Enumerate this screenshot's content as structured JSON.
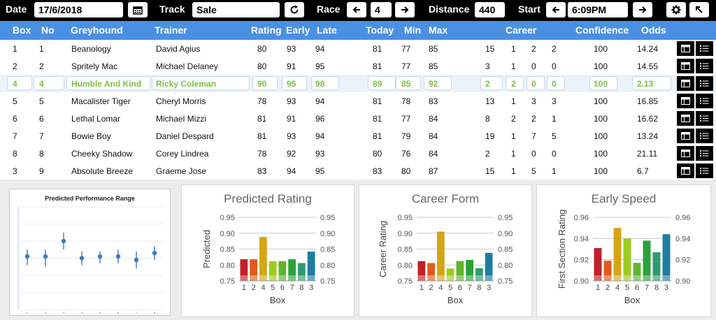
{
  "toolbar": {
    "date_label": "Date",
    "date_value": "17/6/2018",
    "track_label": "Track",
    "track_value": "Sale",
    "race_label": "Race",
    "race_value": "4",
    "distance_label": "Distance",
    "distance_value": "440",
    "start_label": "Start",
    "start_value": "6:09PM"
  },
  "table": {
    "headers": [
      "Box",
      "No",
      "Greyhound",
      "Trainer",
      "Rating",
      "Early",
      "Late",
      "Today",
      "Min",
      "Max",
      "Career",
      "Confidence",
      "Odds"
    ],
    "rows": [
      {
        "box": "1",
        "no": "1",
        "dog": "Beanology",
        "trainer": "David Agius",
        "rating": "80",
        "early": "93",
        "late": "94",
        "today": "81",
        "min": "77",
        "max": "85",
        "c1": "15",
        "c2": "1",
        "c3": "2",
        "c4": "2",
        "conf": "100",
        "odds": "14.24"
      },
      {
        "box": "2",
        "no": "2",
        "dog": "Spritely Mac",
        "trainer": "Michael Delaney",
        "rating": "80",
        "early": "91",
        "late": "95",
        "today": "81",
        "min": "77",
        "max": "85",
        "c1": "3",
        "c2": "1",
        "c3": "0",
        "c4": "0",
        "conf": "100",
        "odds": "14.55"
      },
      {
        "box": "4",
        "no": "4",
        "dog": "Humble And Kind",
        "trainer": "Ricky Coleman",
        "rating": "90",
        "early": "95",
        "late": "98",
        "today": "89",
        "min": "85",
        "max": "92",
        "c1": "2",
        "c2": "2",
        "c3": "0",
        "c4": "0",
        "conf": "100",
        "odds": "2.13"
      },
      {
        "box": "5",
        "no": "5",
        "dog": "Macalister Tiger",
        "trainer": "Cheryl Morris",
        "rating": "78",
        "early": "93",
        "late": "94",
        "today": "81",
        "min": "78",
        "max": "83",
        "c1": "13",
        "c2": "1",
        "c3": "3",
        "c4": "3",
        "conf": "100",
        "odds": "16.85"
      },
      {
        "box": "6",
        "no": "6",
        "dog": "Lethal Lomar",
        "trainer": "Michael Mizzi",
        "rating": "81",
        "early": "91",
        "late": "96",
        "today": "81",
        "min": "77",
        "max": "84",
        "c1": "8",
        "c2": "2",
        "c3": "2",
        "c4": "1",
        "conf": "100",
        "odds": "16.62"
      },
      {
        "box": "7",
        "no": "7",
        "dog": "Bowie Boy",
        "trainer": "Daniel Despard",
        "rating": "81",
        "early": "93",
        "late": "94",
        "today": "81",
        "min": "79",
        "max": "84",
        "c1": "19",
        "c2": "1",
        "c3": "7",
        "c4": "5",
        "conf": "100",
        "odds": "13.24"
      },
      {
        "box": "8",
        "no": "8",
        "dog": "Cheeky Shadow",
        "trainer": "Corey Lindrea",
        "rating": "78",
        "early": "92",
        "late": "93",
        "today": "80",
        "min": "76",
        "max": "84",
        "c1": "2",
        "c2": "1",
        "c3": "0",
        "c4": "0",
        "conf": "100",
        "odds": "21.11"
      },
      {
        "box": "3",
        "no": "9",
        "dog": "Absolute Breeze",
        "trainer": "Graeme Jose",
        "rating": "83",
        "early": "94",
        "late": "95",
        "today": "83",
        "min": "80",
        "max": "87",
        "c1": "15",
        "c2": "1",
        "c3": "5",
        "c4": "1",
        "conf": "100",
        "odds": "6.7"
      }
    ],
    "selected_index": 2
  },
  "colors": {
    "header_bg": "#4a90e2",
    "selected_text": "#7ac143",
    "bars": [
      "#c0202a",
      "#e05b1b",
      "#d4a514",
      "#9ccc1f",
      "#5fb52d",
      "#2aa23a",
      "#2d9b6f",
      "#1f7ca0"
    ]
  },
  "chart_data": [
    {
      "type": "scatter",
      "title": "Predicted Performance Range",
      "x": [
        "1",
        "2",
        "3",
        "4",
        "5",
        "6",
        "7",
        "8"
      ],
      "y": [
        0.81,
        0.81,
        0.9,
        0.8,
        0.81,
        0.81,
        0.79,
        0.83
      ],
      "low": [
        0.76,
        0.75,
        0.85,
        0.76,
        0.77,
        0.77,
        0.74,
        0.79
      ],
      "high": [
        0.85,
        0.85,
        0.95,
        0.84,
        0.84,
        0.85,
        0.84,
        0.87
      ],
      "ylim": [
        0.5,
        1.1
      ]
    },
    {
      "type": "bar",
      "title": "Predicted Rating",
      "xlabel": "Box",
      "ylabel": "Predicted",
      "categories": [
        "1",
        "2",
        "4",
        "5",
        "6",
        "7",
        "8",
        "3"
      ],
      "values": [
        0.818,
        0.818,
        0.888,
        0.812,
        0.812,
        0.818,
        0.806,
        0.842
      ],
      "ylim": [
        0.75,
        0.95
      ],
      "yticks": [
        "0.75",
        "0.80",
        "0.85",
        "0.90",
        "0.95"
      ]
    },
    {
      "type": "bar",
      "title": "Career Form",
      "xlabel": "Box",
      "ylabel": "Career Rating",
      "categories": [
        "1",
        "2",
        "4",
        "5",
        "6",
        "7",
        "8",
        "3"
      ],
      "values": [
        0.812,
        0.806,
        0.905,
        0.789,
        0.812,
        0.816,
        0.79,
        0.838
      ],
      "ylim": [
        0.75,
        0.95
      ],
      "yticks": [
        "0.75",
        "0.80",
        "0.85",
        "0.90",
        "0.95"
      ]
    },
    {
      "type": "bar",
      "title": "Early Speed",
      "xlabel": "Box",
      "ylabel": "First Section Rating",
      "categories": [
        "1",
        "2",
        "4",
        "5",
        "6",
        "7",
        "8",
        "3"
      ],
      "values": [
        0.931,
        0.919,
        0.95,
        0.94,
        0.917,
        0.938,
        0.927,
        0.944
      ],
      "ylim": [
        0.9,
        0.96
      ],
      "yticks": [
        "0.90",
        "0.92",
        "0.94",
        "0.96"
      ]
    }
  ]
}
